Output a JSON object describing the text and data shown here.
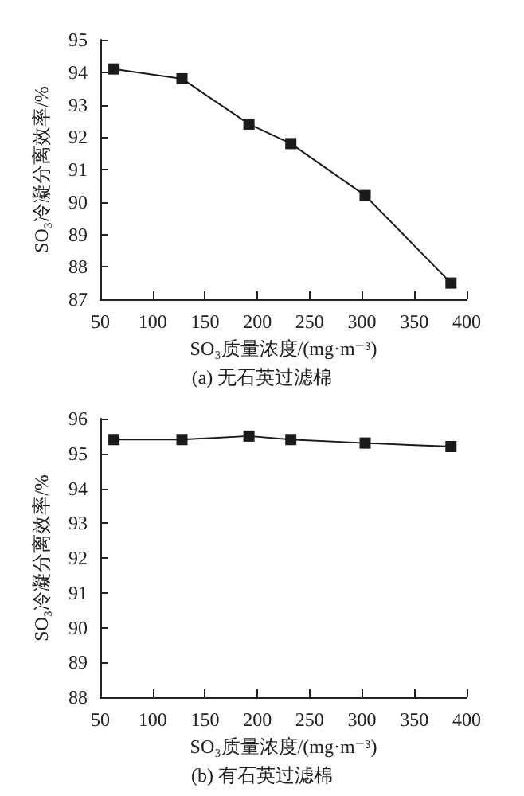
{
  "chart_data": [
    {
      "type": "line",
      "title": "(a) 无石英过滤棉",
      "xlabel": "SO₃质量浓度/(mg·m⁻³)",
      "ylabel": "SO₃冷凝分离效率/%",
      "x": [
        63,
        128,
        192,
        232,
        303,
        385
      ],
      "series": [
        {
          "color": "#1a1a1a",
          "values": [
            94.1,
            93.8,
            92.4,
            91.8,
            90.2,
            87.5
          ]
        }
      ],
      "xlim": [
        50,
        400
      ],
      "xticks": [
        50,
        100,
        150,
        200,
        250,
        300,
        350,
        400
      ],
      "ylim": [
        87,
        95
      ],
      "yticks": [
        87,
        88,
        89,
        90,
        91,
        92,
        93,
        94,
        95
      ],
      "marker": "square",
      "line_style": "solid"
    },
    {
      "type": "line",
      "title": "(b) 有石英过滤棉",
      "xlabel": "SO₃质量浓度/(mg·m⁻³)",
      "ylabel": "SO₃冷凝分离效率/%",
      "x": [
        63,
        128,
        192,
        232,
        303,
        385
      ],
      "series": [
        {
          "color": "#1a1a1a",
          "values": [
            95.4,
            95.4,
            95.5,
            95.4,
            95.3,
            95.2
          ]
        }
      ],
      "xlim": [
        50,
        400
      ],
      "xticks": [
        50,
        100,
        150,
        200,
        250,
        300,
        350,
        400
      ],
      "ylim": [
        88,
        96
      ],
      "yticks": [
        88,
        89,
        90,
        91,
        92,
        93,
        94,
        95,
        96
      ],
      "marker": "square",
      "line_style": "solid"
    }
  ]
}
